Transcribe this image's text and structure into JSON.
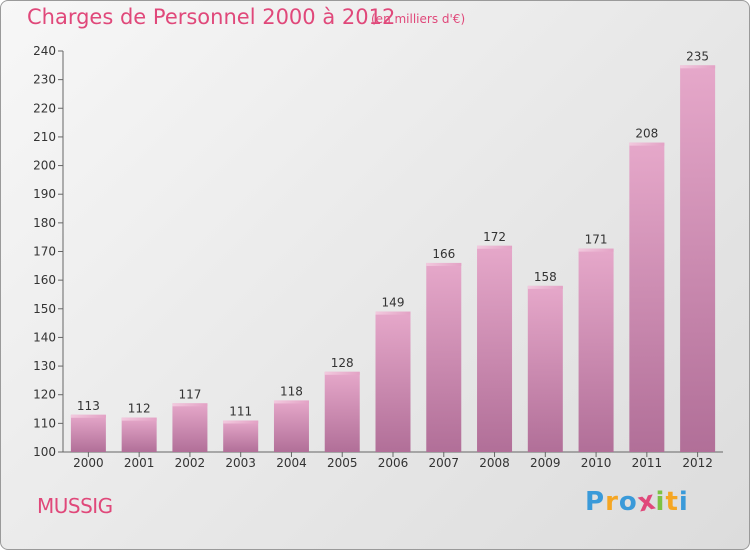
{
  "chart_data": {
    "type": "bar",
    "title": "Charges de Personnel 2000 à 2012",
    "subtitle": "(en milliers d'€)",
    "categories": [
      "2000",
      "2001",
      "2002",
      "2003",
      "2004",
      "2005",
      "2006",
      "2007",
      "2008",
      "2009",
      "2010",
      "2011",
      "2012"
    ],
    "values": [
      113,
      112,
      117,
      111,
      118,
      128,
      149,
      166,
      172,
      158,
      171,
      208,
      235
    ],
    "ylim": [
      100,
      240
    ],
    "yticks": [
      100,
      110,
      120,
      130,
      140,
      150,
      160,
      170,
      180,
      190,
      200,
      210,
      220,
      230,
      240
    ],
    "grid": false,
    "bar_color": "#d67fae"
  },
  "place_name": "MUSSIG",
  "logo": {
    "letters": [
      "P",
      "r",
      "o",
      "x",
      "i",
      "t",
      "i"
    ],
    "colors": [
      "#3a9ad9",
      "#f5a623",
      "#3a9ad9",
      "#e0487a",
      "#7cc243",
      "#f5a623",
      "#3a9ad9"
    ]
  }
}
